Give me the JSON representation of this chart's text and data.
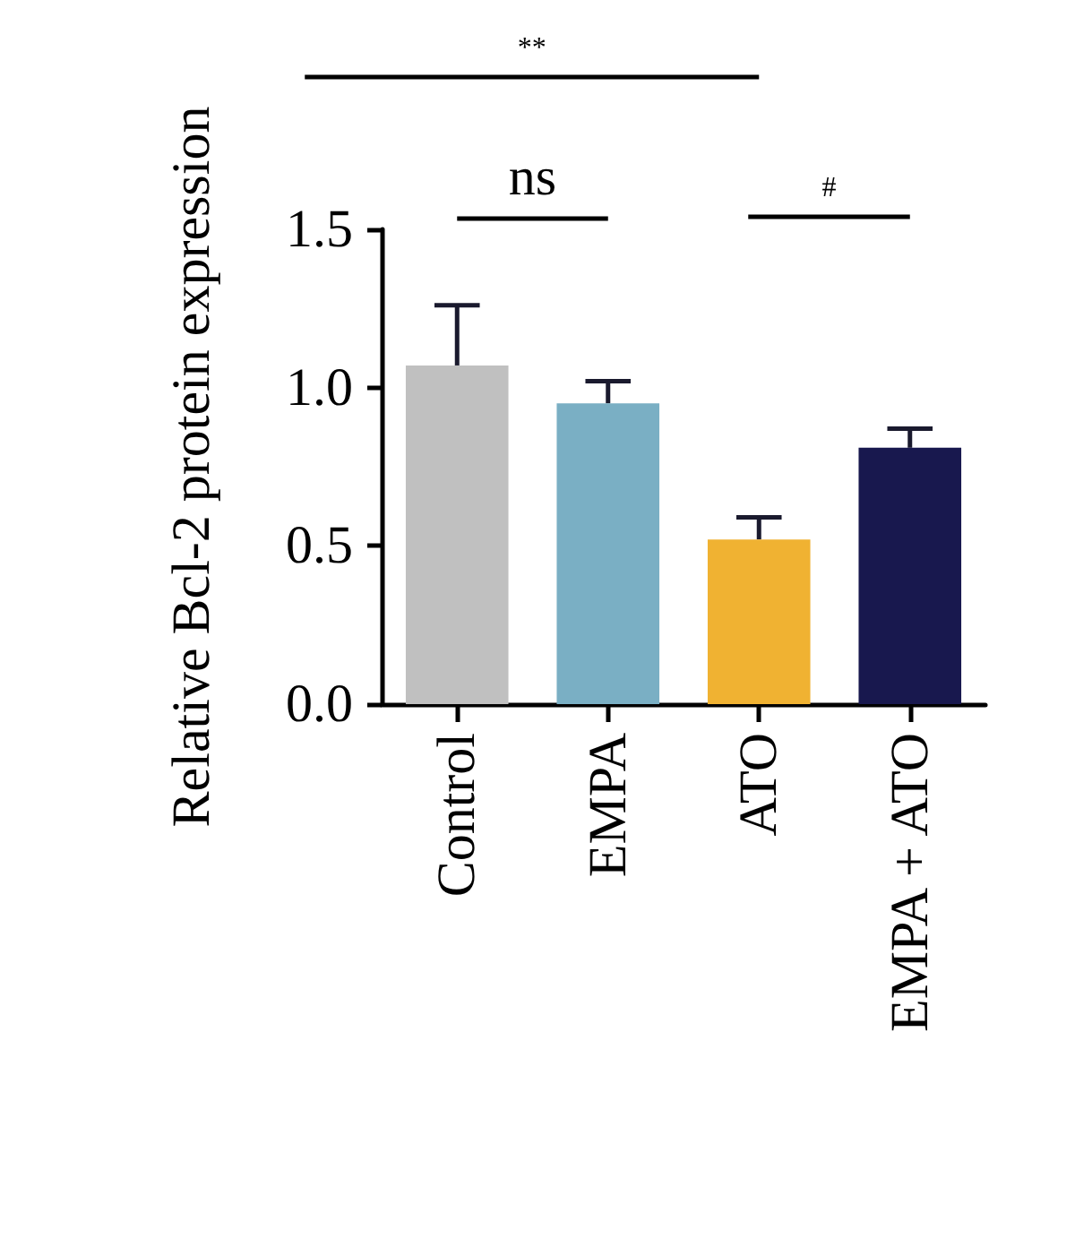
{
  "chart_data": {
    "type": "bar",
    "ylabel": "Relative Bcl-2 protein expression",
    "categories": [
      "Control",
      "EMPA",
      "ATO",
      "EMPA + ATO"
    ],
    "values": [
      1.07,
      0.95,
      0.52,
      0.81
    ],
    "colors": [
      "#c0c0c0",
      "#7aafc4",
      "#f0b232",
      "#18184e"
    ],
    "errors": [
      [
        1.07,
        1.26
      ],
      [
        0.95,
        1.02
      ],
      [
        0.52,
        0.59
      ],
      [
        0.81,
        0.87
      ]
    ],
    "ylim": [
      0,
      1.5
    ],
    "yticks": [
      {
        "value": 0,
        "label": "0.0"
      },
      {
        "value": 0.5,
        "label": "0.5"
      },
      {
        "value": 1,
        "label": "1.0"
      },
      {
        "value": 1.5,
        "label": "1.5"
      }
    ],
    "grid": false,
    "annotations": [
      "**",
      "ns",
      "#"
    ]
  }
}
